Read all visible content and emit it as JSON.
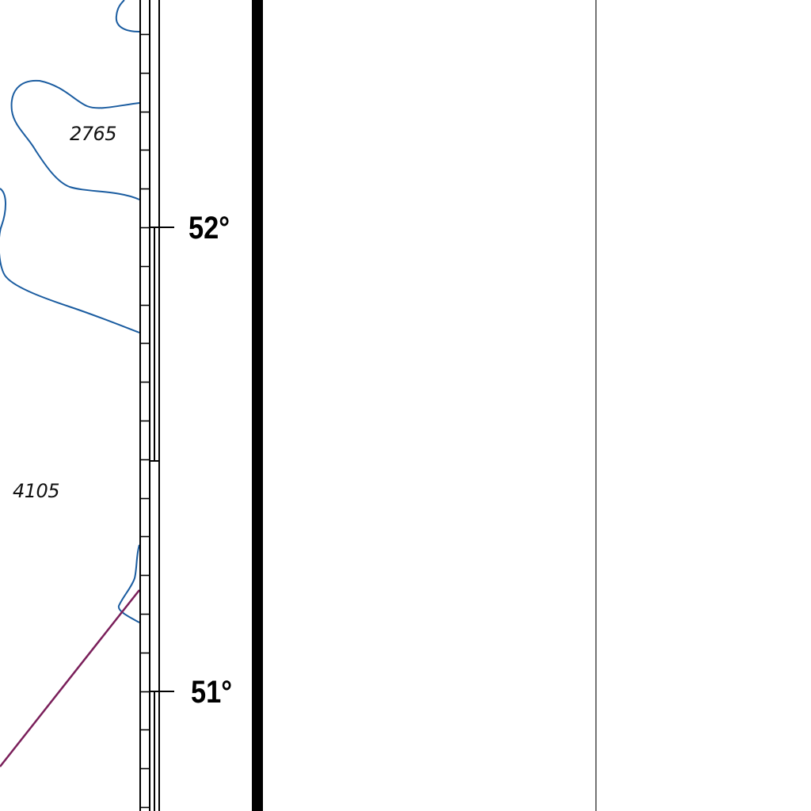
{
  "map": {
    "depth_labels": [
      "2765",
      "4105"
    ],
    "latitude_labels": [
      "52°",
      "51°"
    ],
    "colors": {
      "contour": "#1a5ca0",
      "route": "#7a1f5a",
      "frame": "#000000",
      "background": "#ffffff"
    }
  }
}
